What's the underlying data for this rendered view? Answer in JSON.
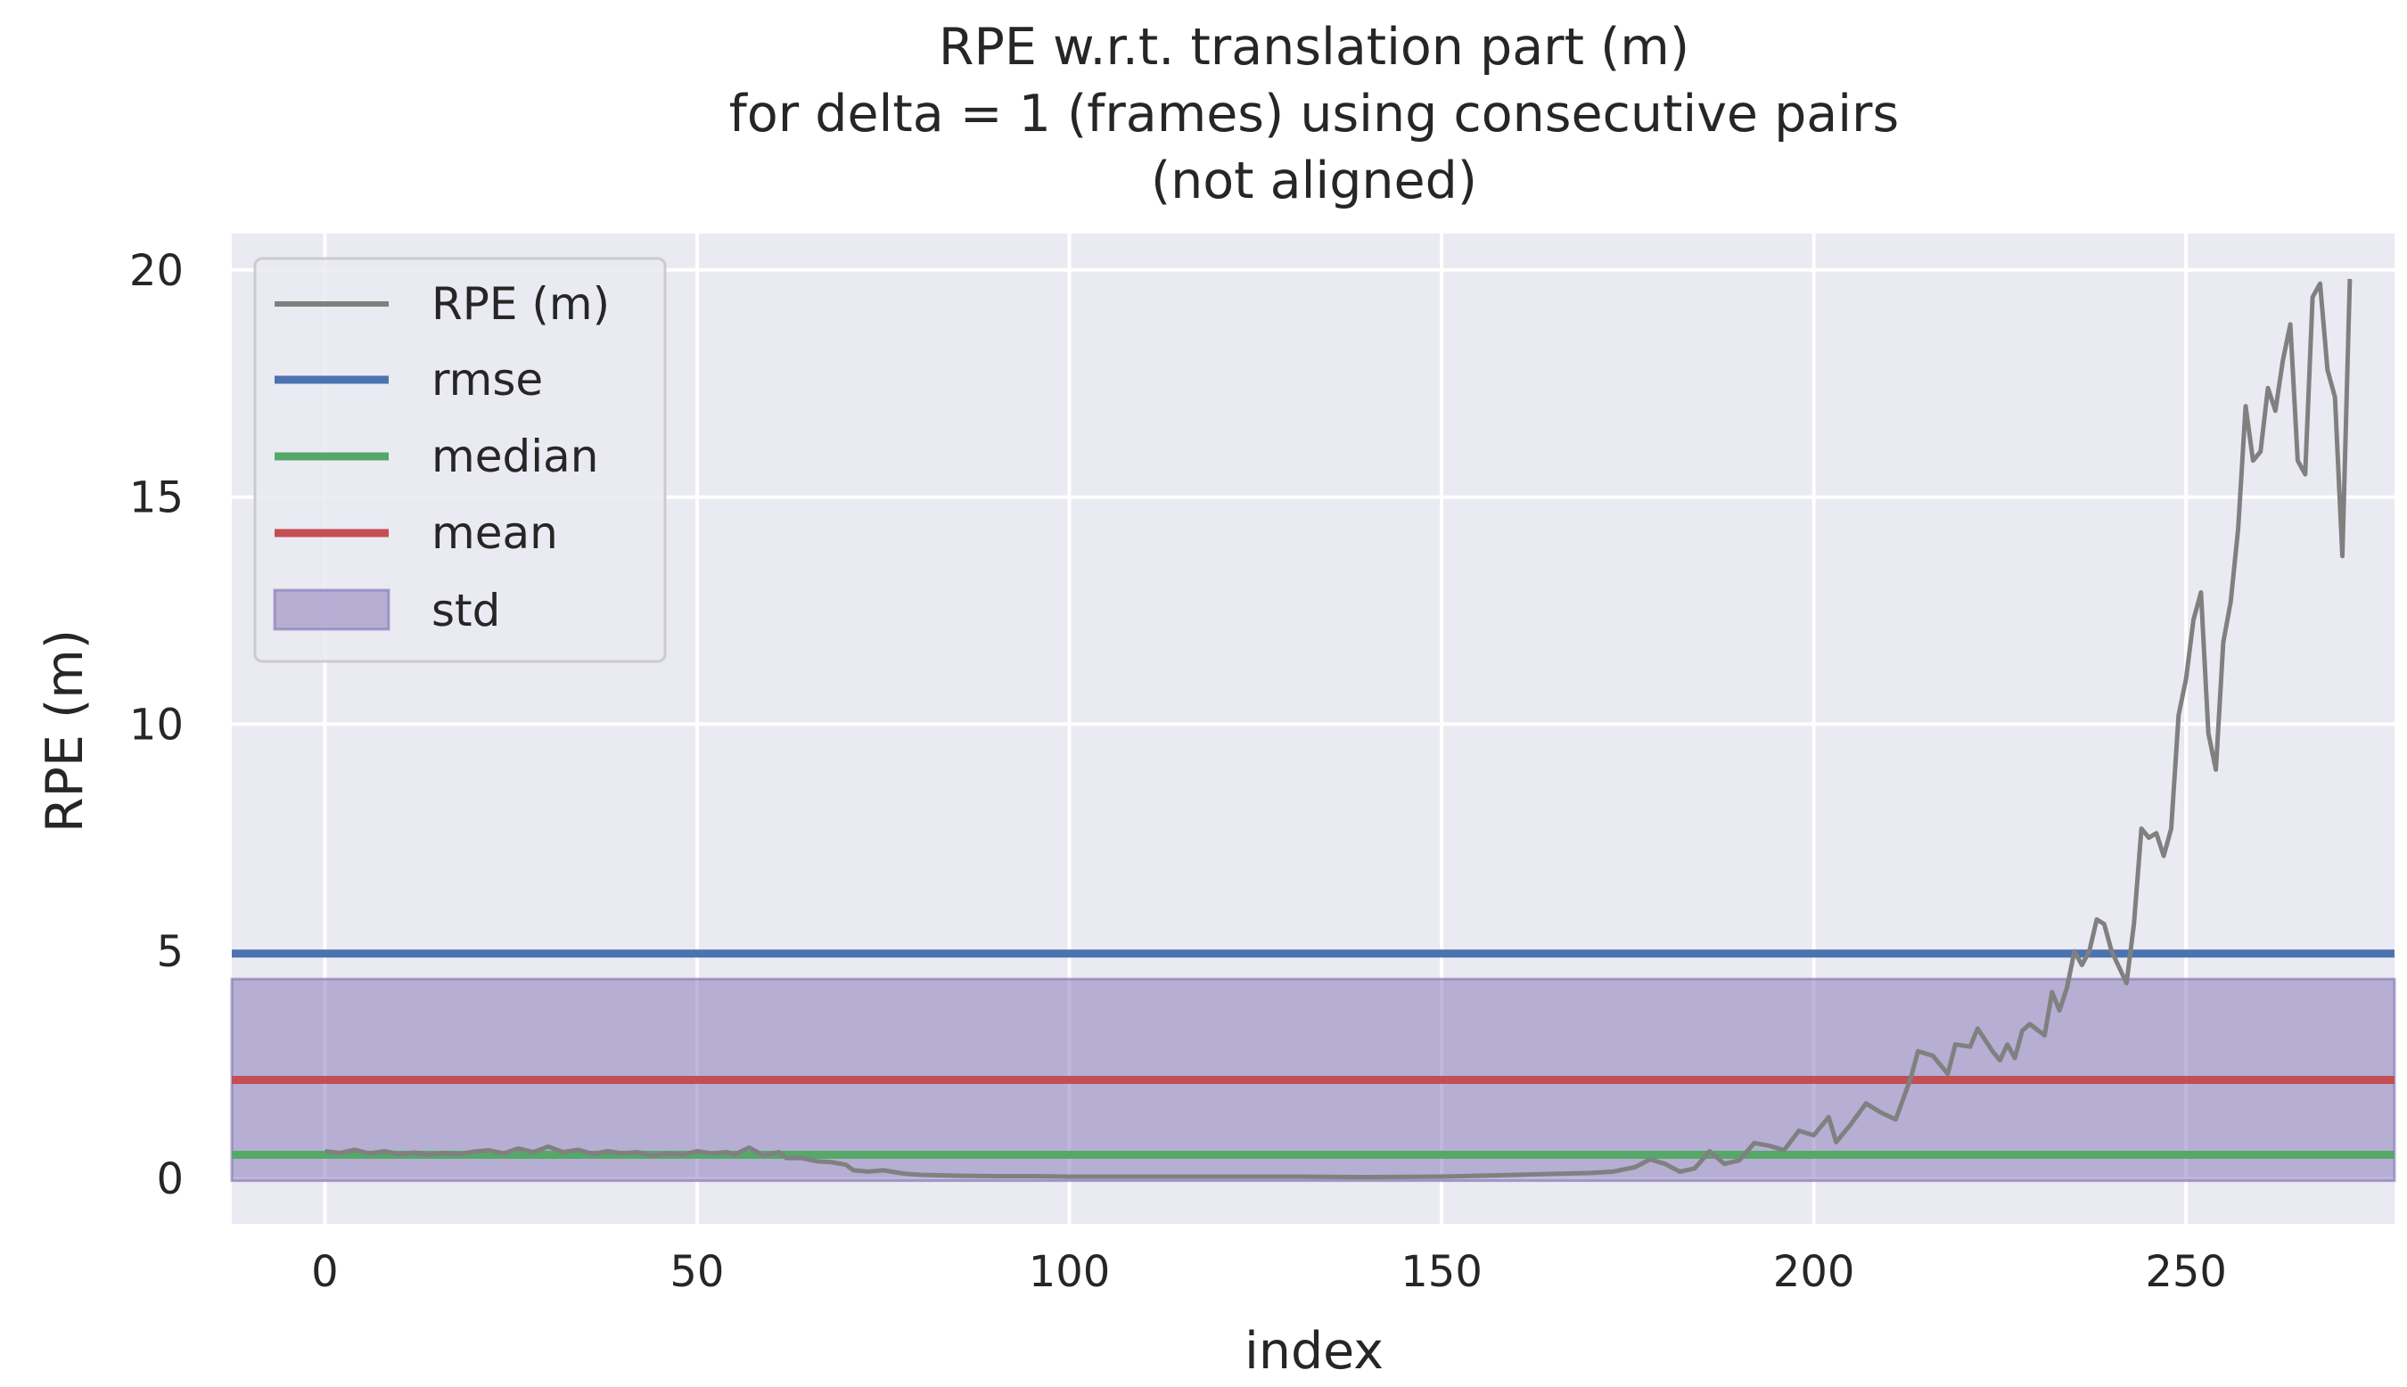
{
  "chart_data": {
    "type": "line",
    "title_lines": [
      "RPE w.r.t. translation part (m)",
      "for delta = 1 (frames) using consecutive pairs",
      "(not aligned)"
    ],
    "xlabel": "index",
    "ylabel": "RPE (m)",
    "xlim": [
      -12.5,
      278
    ],
    "ylim": [
      -1.0,
      20.8
    ],
    "xticks": [
      0,
      50,
      100,
      150,
      200,
      250
    ],
    "yticks": [
      0,
      5,
      10,
      15,
      20
    ],
    "grid": true,
    "legend_position": "top-left",
    "legend": [
      "RPE (m)",
      "rmse",
      "median",
      "mean",
      "std"
    ],
    "colors": {
      "rpe": "#808080",
      "rmse": "#4c72b0",
      "median": "#55a868",
      "mean": "#c44e52",
      "std": "#8172b3",
      "background": "#eaeaf2",
      "grid": "#ffffff"
    },
    "stats": {
      "rmse": 4.95,
      "median": 0.52,
      "mean": 2.17,
      "std_band": [
        -0.05,
        4.39
      ]
    },
    "series": [
      {
        "name": "RPE (m)",
        "points": [
          [
            0,
            0.6
          ],
          [
            2,
            0.56
          ],
          [
            4,
            0.63
          ],
          [
            6,
            0.55
          ],
          [
            8,
            0.6
          ],
          [
            10,
            0.53
          ],
          [
            12,
            0.57
          ],
          [
            14,
            0.52
          ],
          [
            16,
            0.56
          ],
          [
            18,
            0.53
          ],
          [
            20,
            0.59
          ],
          [
            22,
            0.62
          ],
          [
            24,
            0.55
          ],
          [
            26,
            0.66
          ],
          [
            28,
            0.58
          ],
          [
            30,
            0.7
          ],
          [
            32,
            0.58
          ],
          [
            34,
            0.63
          ],
          [
            36,
            0.54
          ],
          [
            38,
            0.6
          ],
          [
            40,
            0.55
          ],
          [
            42,
            0.58
          ],
          [
            44,
            0.5
          ],
          [
            46,
            0.55
          ],
          [
            48,
            0.52
          ],
          [
            50,
            0.6
          ],
          [
            52,
            0.55
          ],
          [
            54,
            0.58
          ],
          [
            55,
            0.52
          ],
          [
            57,
            0.68
          ],
          [
            59,
            0.5
          ],
          [
            61,
            0.58
          ],
          [
            62,
            0.45
          ],
          [
            64,
            0.45
          ],
          [
            66,
            0.38
          ],
          [
            68,
            0.36
          ],
          [
            70,
            0.3
          ],
          [
            71,
            0.18
          ],
          [
            73,
            0.15
          ],
          [
            75,
            0.18
          ],
          [
            78,
            0.1
          ],
          [
            80,
            0.08
          ],
          [
            85,
            0.06
          ],
          [
            90,
            0.05
          ],
          [
            95,
            0.05
          ],
          [
            100,
            0.04
          ],
          [
            110,
            0.04
          ],
          [
            120,
            0.04
          ],
          [
            130,
            0.04
          ],
          [
            140,
            0.03
          ],
          [
            150,
            0.04
          ],
          [
            155,
            0.06
          ],
          [
            160,
            0.08
          ],
          [
            165,
            0.1
          ],
          [
            170,
            0.12
          ],
          [
            173,
            0.15
          ],
          [
            176,
            0.25
          ],
          [
            178,
            0.42
          ],
          [
            180,
            0.32
          ],
          [
            182,
            0.15
          ],
          [
            184,
            0.22
          ],
          [
            186,
            0.6
          ],
          [
            188,
            0.32
          ],
          [
            190,
            0.4
          ],
          [
            192,
            0.78
          ],
          [
            194,
            0.72
          ],
          [
            196,
            0.62
          ],
          [
            198,
            1.05
          ],
          [
            200,
            0.95
          ],
          [
            202,
            1.35
          ],
          [
            203,
            0.8
          ],
          [
            205,
            1.2
          ],
          [
            207,
            1.65
          ],
          [
            209,
            1.45
          ],
          [
            211,
            1.3
          ],
          [
            213,
            2.2
          ],
          [
            214,
            2.8
          ],
          [
            216,
            2.7
          ],
          [
            218,
            2.3
          ],
          [
            219,
            2.95
          ],
          [
            221,
            2.9
          ],
          [
            222,
            3.3
          ],
          [
            224,
            2.8
          ],
          [
            225,
            2.6
          ],
          [
            226,
            2.95
          ],
          [
            227,
            2.65
          ],
          [
            228,
            3.25
          ],
          [
            229,
            3.4
          ],
          [
            231,
            3.15
          ],
          [
            232,
            4.1
          ],
          [
            233,
            3.7
          ],
          [
            234,
            4.2
          ],
          [
            235,
            5.0
          ],
          [
            236,
            4.7
          ],
          [
            237,
            5.0
          ],
          [
            238,
            5.7
          ],
          [
            239,
            5.6
          ],
          [
            240,
            5.0
          ],
          [
            242,
            4.3
          ],
          [
            243,
            5.6
          ],
          [
            244,
            7.7
          ],
          [
            245,
            7.5
          ],
          [
            246,
            7.6
          ],
          [
            247,
            7.1
          ],
          [
            248,
            7.7
          ],
          [
            249,
            10.2
          ],
          [
            250,
            11.0
          ],
          [
            251,
            12.3
          ],
          [
            252,
            12.9
          ],
          [
            253,
            9.8
          ],
          [
            254,
            9.0
          ],
          [
            255,
            11.8
          ],
          [
            256,
            12.7
          ],
          [
            257,
            14.3
          ],
          [
            258,
            17.0
          ],
          [
            259,
            15.8
          ],
          [
            260,
            16.0
          ],
          [
            261,
            17.4
          ],
          [
            262,
            16.9
          ],
          [
            263,
            18.0
          ],
          [
            264,
            18.8
          ],
          [
            265,
            15.8
          ],
          [
            266,
            15.5
          ],
          [
            267,
            19.4
          ],
          [
            268,
            19.7
          ],
          [
            269,
            17.8
          ],
          [
            270,
            17.2
          ],
          [
            271,
            13.7
          ],
          [
            272,
            19.8
          ]
        ]
      }
    ]
  }
}
